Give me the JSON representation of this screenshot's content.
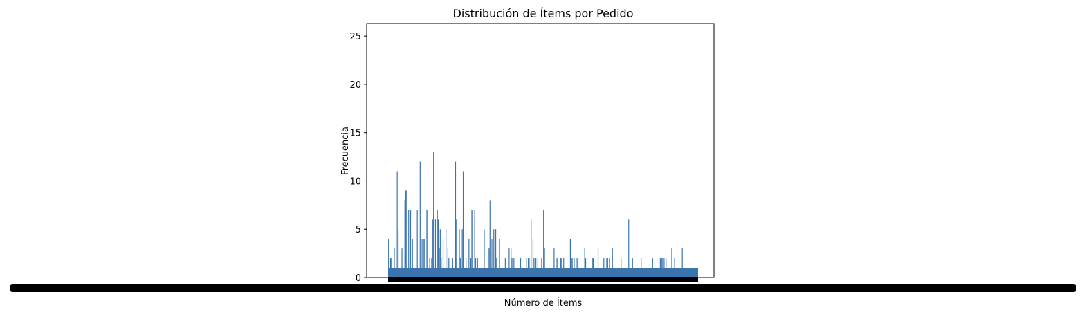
{
  "figure_bg": "#ffffff",
  "chart_data": {
    "type": "bar",
    "title": "Distribución de Ítems por Pedido",
    "xlabel": "Número de Ítems",
    "ylabel": "Frecuencia",
    "ylim": [
      0,
      26.3
    ],
    "yticks": [
      0,
      5,
      10,
      15,
      20,
      25
    ],
    "grid": false,
    "legend": "none",
    "bar_color": "#3b75af",
    "baseline_frequency": 1,
    "series": [
      {
        "values": [
          4,
          1,
          2,
          2,
          1,
          1,
          3,
          1,
          1,
          11,
          5,
          1,
          1,
          1,
          3,
          1,
          1,
          8,
          9,
          9,
          1,
          7,
          1,
          7,
          1,
          4,
          1,
          1,
          1,
          1,
          7,
          1,
          1,
          12,
          1,
          4,
          1,
          4,
          4,
          1,
          7,
          7,
          1,
          2,
          1,
          2,
          6,
          13,
          1,
          6,
          1,
          7,
          6,
          3,
          5,
          2,
          1,
          4,
          1,
          1,
          5,
          1,
          3,
          2,
          1,
          1,
          1,
          2,
          1,
          1,
          12,
          6,
          1,
          1,
          5,
          2,
          1,
          5,
          11,
          1,
          1,
          2,
          1,
          1,
          4,
          1,
          2,
          7,
          7,
          1,
          7,
          2,
          1,
          2,
          1,
          1,
          1,
          1,
          1,
          1,
          5,
          1,
          1,
          1,
          1,
          3,
          8,
          1,
          4,
          1,
          5,
          1,
          5,
          2,
          1,
          1,
          4,
          1,
          1,
          1,
          1,
          1,
          2,
          1,
          1,
          1,
          3,
          1,
          3,
          2,
          1,
          2,
          1,
          1,
          1,
          1,
          1,
          1,
          2,
          1,
          1,
          1,
          1,
          1,
          2,
          1,
          2,
          2,
          1,
          6,
          1,
          4,
          2,
          1,
          2,
          1,
          2,
          1,
          1,
          1,
          2,
          1,
          7,
          3,
          1,
          1,
          1,
          1,
          1,
          1,
          1,
          1,
          1,
          3,
          1,
          1,
          2,
          2,
          1,
          1,
          2,
          2,
          1,
          2,
          1,
          1,
          1,
          1,
          1,
          1,
          4,
          2,
          2,
          1,
          2,
          1,
          1,
          2,
          2,
          1,
          1,
          1,
          1,
          1,
          1,
          3,
          2,
          1,
          1,
          1,
          1,
          1,
          1,
          2,
          2,
          1,
          1,
          1,
          1,
          3,
          1,
          1,
          1,
          1,
          1,
          2,
          1,
          1,
          2,
          2,
          1,
          2,
          1,
          1,
          3,
          1,
          1,
          1,
          1,
          1,
          1,
          1,
          1,
          2,
          1,
          1,
          1,
          1,
          1,
          1,
          1,
          6,
          1,
          1,
          1,
          2,
          1,
          1,
          1,
          1,
          1,
          1,
          1,
          1,
          2,
          1,
          1,
          1,
          1,
          1,
          1,
          1,
          1,
          1,
          1,
          1,
          2,
          1,
          1,
          1,
          1,
          1,
          1,
          1,
          2,
          2,
          2,
          1,
          2,
          1,
          2,
          1,
          1,
          1,
          1,
          1,
          3,
          1,
          1,
          2,
          1,
          1,
          1,
          1,
          1,
          1,
          1,
          3,
          1,
          1,
          1,
          1,
          1,
          1,
          1,
          1,
          1,
          1,
          1,
          1,
          1,
          1,
          1,
          1
        ]
      }
    ]
  }
}
